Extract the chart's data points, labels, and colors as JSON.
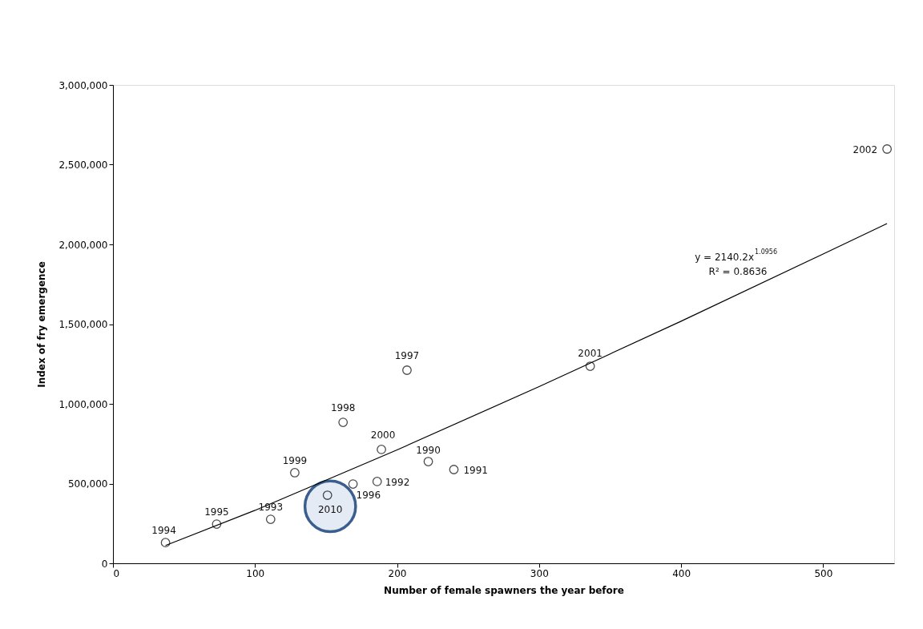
{
  "chart_data": {
    "type": "scatter",
    "xlabel": "Number of female spawners the year before",
    "ylabel": "Index of fry emergence",
    "xlim": [
      0,
      550
    ],
    "xticks": [
      0,
      100,
      200,
      300,
      400,
      500
    ],
    "ylim": [
      0,
      3000000
    ],
    "yticks": [
      {
        "value": 0,
        "label": "0"
      },
      {
        "value": 500000,
        "label": "500,000"
      },
      {
        "value": 1000000,
        "label": "1,000,000"
      },
      {
        "value": 1500000,
        "label": "1,500,000"
      },
      {
        "value": 2000000,
        "label": "2,000,000"
      },
      {
        "value": 2500000,
        "label": "2,500,000"
      },
      {
        "value": 3000000,
        "label": "3,000,000"
      }
    ],
    "grid": false,
    "series": [
      {
        "color": "#000000",
        "marker": "circle",
        "x": [
          37,
          73,
          111,
          128,
          151,
          162,
          169,
          186,
          189,
          207,
          222,
          240,
          336,
          545
        ],
        "values": [
          130000,
          246000,
          276000,
          568000,
          427000,
          884000,
          497000,
          513000,
          714000,
          1211000,
          638000,
          588000,
          1236000,
          2598000
        ]
      },
      {
        "type": "bubble",
        "color": "#3a5f8f",
        "x": [
          153
        ],
        "values": [
          357000
        ],
        "sizes": [
          1
        ]
      },
      {
        "type": "line",
        "color": "#000000",
        "line_style": "solid",
        "marker": "none",
        "x": [
          37,
          100,
          200,
          300,
          400,
          500,
          545
        ],
        "values": [
          112000,
          332000,
          711000,
          1108000,
          1518000,
          1940000,
          2131000
        ]
      }
    ],
    "annotations": [
      {
        "text": "1994",
        "x": 37,
        "y": 130000
      },
      {
        "text": "1995",
        "x": 73,
        "y": 246000
      },
      {
        "text": "1993",
        "x": 111,
        "y": 276000
      },
      {
        "text": "1999",
        "x": 128,
        "y": 568000
      },
      {
        "text": "2010",
        "x": 153,
        "y": 357000
      },
      {
        "text": "1998",
        "x": 162,
        "y": 884000
      },
      {
        "text": "1996",
        "x": 169,
        "y": 497000
      },
      {
        "text": "1992",
        "x": 186,
        "y": 513000
      },
      {
        "text": "2000",
        "x": 189,
        "y": 714000
      },
      {
        "text": "1997",
        "x": 207,
        "y": 1211000
      },
      {
        "text": "1990",
        "x": 222,
        "y": 638000
      },
      {
        "text": "1991",
        "x": 240,
        "y": 588000
      },
      {
        "text": "2001",
        "x": 336,
        "y": 1236000
      },
      {
        "text": "2002",
        "x": 545,
        "y": 2598000
      },
      "y = 2140.2x$^{1.0956}$",
      "R² = 0.8636"
    ]
  }
}
